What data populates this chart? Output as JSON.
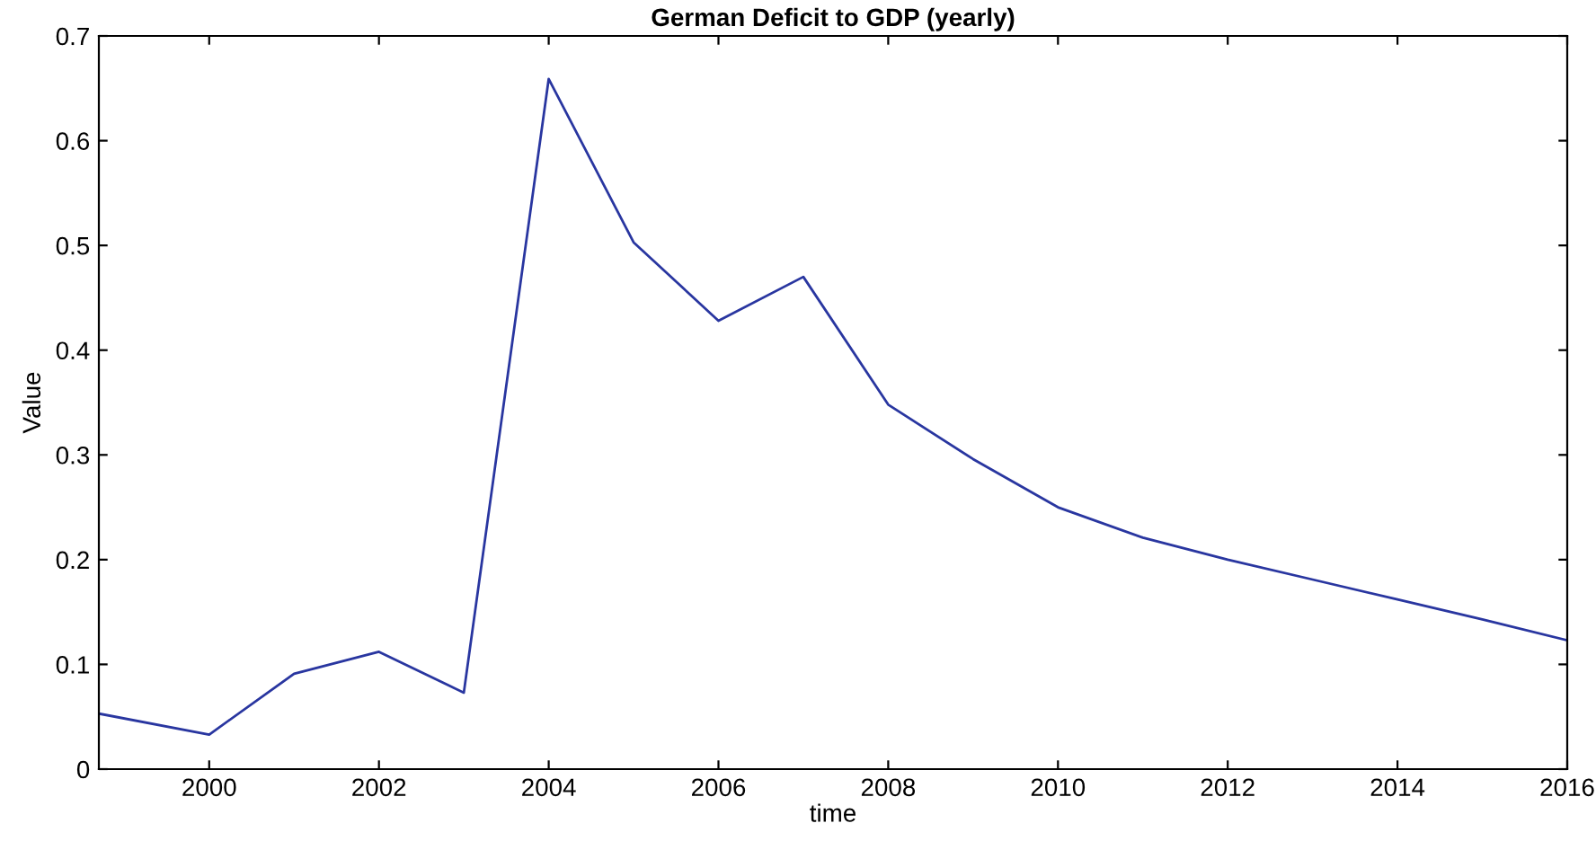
{
  "chart_data": {
    "type": "line",
    "title": "German Deficit to GDP (yearly)",
    "xlabel": "time",
    "ylabel": "Value",
    "x": [
      1998.7,
      2000,
      2001,
      2002,
      2003,
      2004,
      2005,
      2006,
      2007,
      2008,
      2009,
      2010,
      2011,
      2012,
      2013,
      2014,
      2015,
      2016
    ],
    "series": [
      {
        "color": "#2936a0",
        "values": [
          0.053,
          0.033,
          0.091,
          0.112,
          0.073,
          0.659,
          0.503,
          0.428,
          0.47,
          0.348,
          0.296,
          0.25,
          0.221,
          0.2,
          0.181,
          0.162,
          0.143,
          0.123
        ]
      }
    ],
    "xlim": [
      1998.7,
      2016
    ],
    "xticks": [
      2000,
      2002,
      2004,
      2006,
      2008,
      2010,
      2012,
      2014,
      2016
    ],
    "ylim": [
      0,
      0.7
    ],
    "yticks": [
      0,
      0.1,
      0.2,
      0.3,
      0.4,
      0.5,
      0.6,
      0.7
    ],
    "grid": false,
    "marker": "none",
    "line_style": "solid"
  }
}
